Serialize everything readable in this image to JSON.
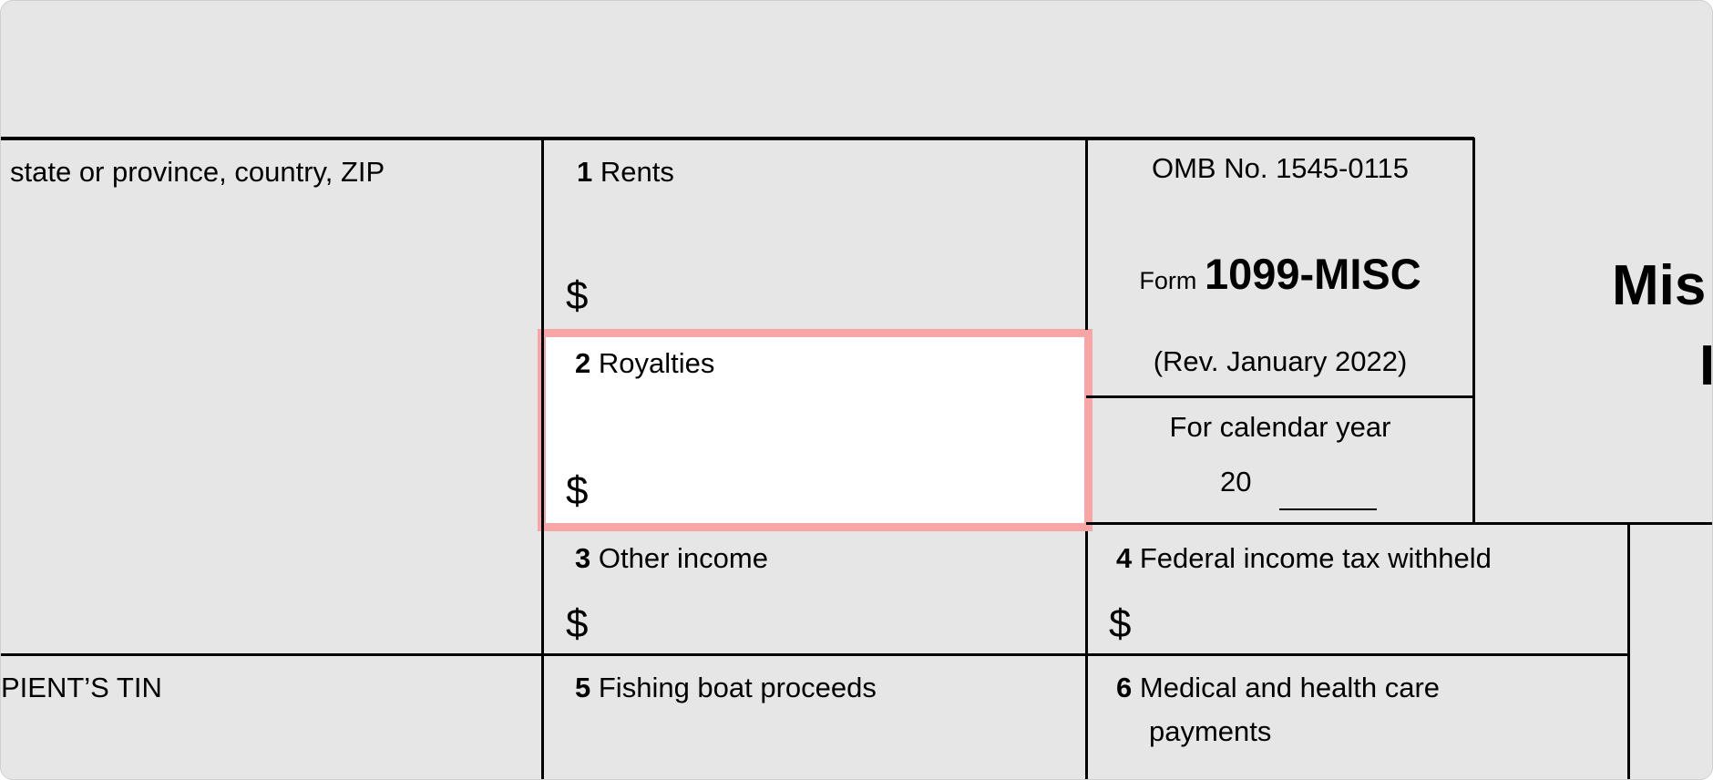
{
  "form": {
    "recipient_address_label": "state or province, country, ZIP",
    "recipient_tin_label": "PIENT’S TIN",
    "boxes": [
      {
        "number": "1",
        "label": "Rents",
        "currency": "$"
      },
      {
        "number": "2",
        "label": "Royalties",
        "currency": "$"
      },
      {
        "number": "3",
        "label": "Other income",
        "currency": "$"
      },
      {
        "number": "4",
        "label": "Federal income tax withheld",
        "currency": "$"
      },
      {
        "number": "5",
        "label": "Fishing boat proceeds"
      },
      {
        "number": "6",
        "label": "Medical and health care",
        "label_line2": "payments"
      }
    ],
    "omb": "OMB No. 1545-0115",
    "form_prefix": "Form",
    "form_name": "1099-MISC",
    "revision": "(Rev. January 2022)",
    "calendar_year_label": "For calendar year",
    "calendar_year_prefix": "20",
    "title_partial_line1": "Mis",
    "title_partial_line2": "I"
  },
  "highlight_color": "#f8a5a5"
}
